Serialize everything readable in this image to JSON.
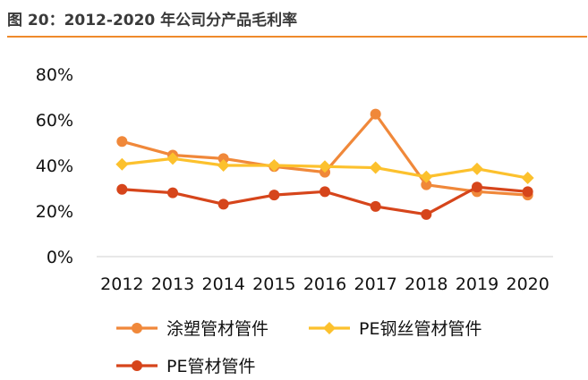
{
  "figure": {
    "title": "图 20：2012-2020 年公司分产品毛利率"
  },
  "chart_data": {
    "type": "line",
    "title": "",
    "xlabel": "",
    "ylabel": "",
    "x": [
      "2012",
      "2013",
      "2014",
      "2015",
      "2016",
      "2017",
      "2018",
      "2019",
      "2020"
    ],
    "ylim": [
      0,
      80
    ],
    "yticks": [
      0,
      20,
      40,
      60,
      80
    ],
    "ytick_labels": [
      "0%",
      "20%",
      "40%",
      "60%",
      "80%"
    ],
    "grid": false,
    "legend_position": "bottom",
    "series": [
      {
        "name": "涂塑管材管件",
        "color": "#f0883a",
        "marker": "circle",
        "values": [
          50.5,
          44.5,
          43,
          39.5,
          37,
          62.5,
          31.5,
          28.5,
          27
        ]
      },
      {
        "name": "PE钢丝管材管件",
        "color": "#fcc12d",
        "marker": "diamond",
        "values": [
          40.5,
          43,
          40,
          40,
          39.5,
          39,
          35,
          38.5,
          34.5
        ]
      },
      {
        "name": "PE管材管件",
        "color": "#d6451b",
        "marker": "circle",
        "values": [
          29.5,
          28,
          23,
          27,
          28.5,
          22,
          18.5,
          30.5,
          28.5
        ]
      }
    ]
  }
}
